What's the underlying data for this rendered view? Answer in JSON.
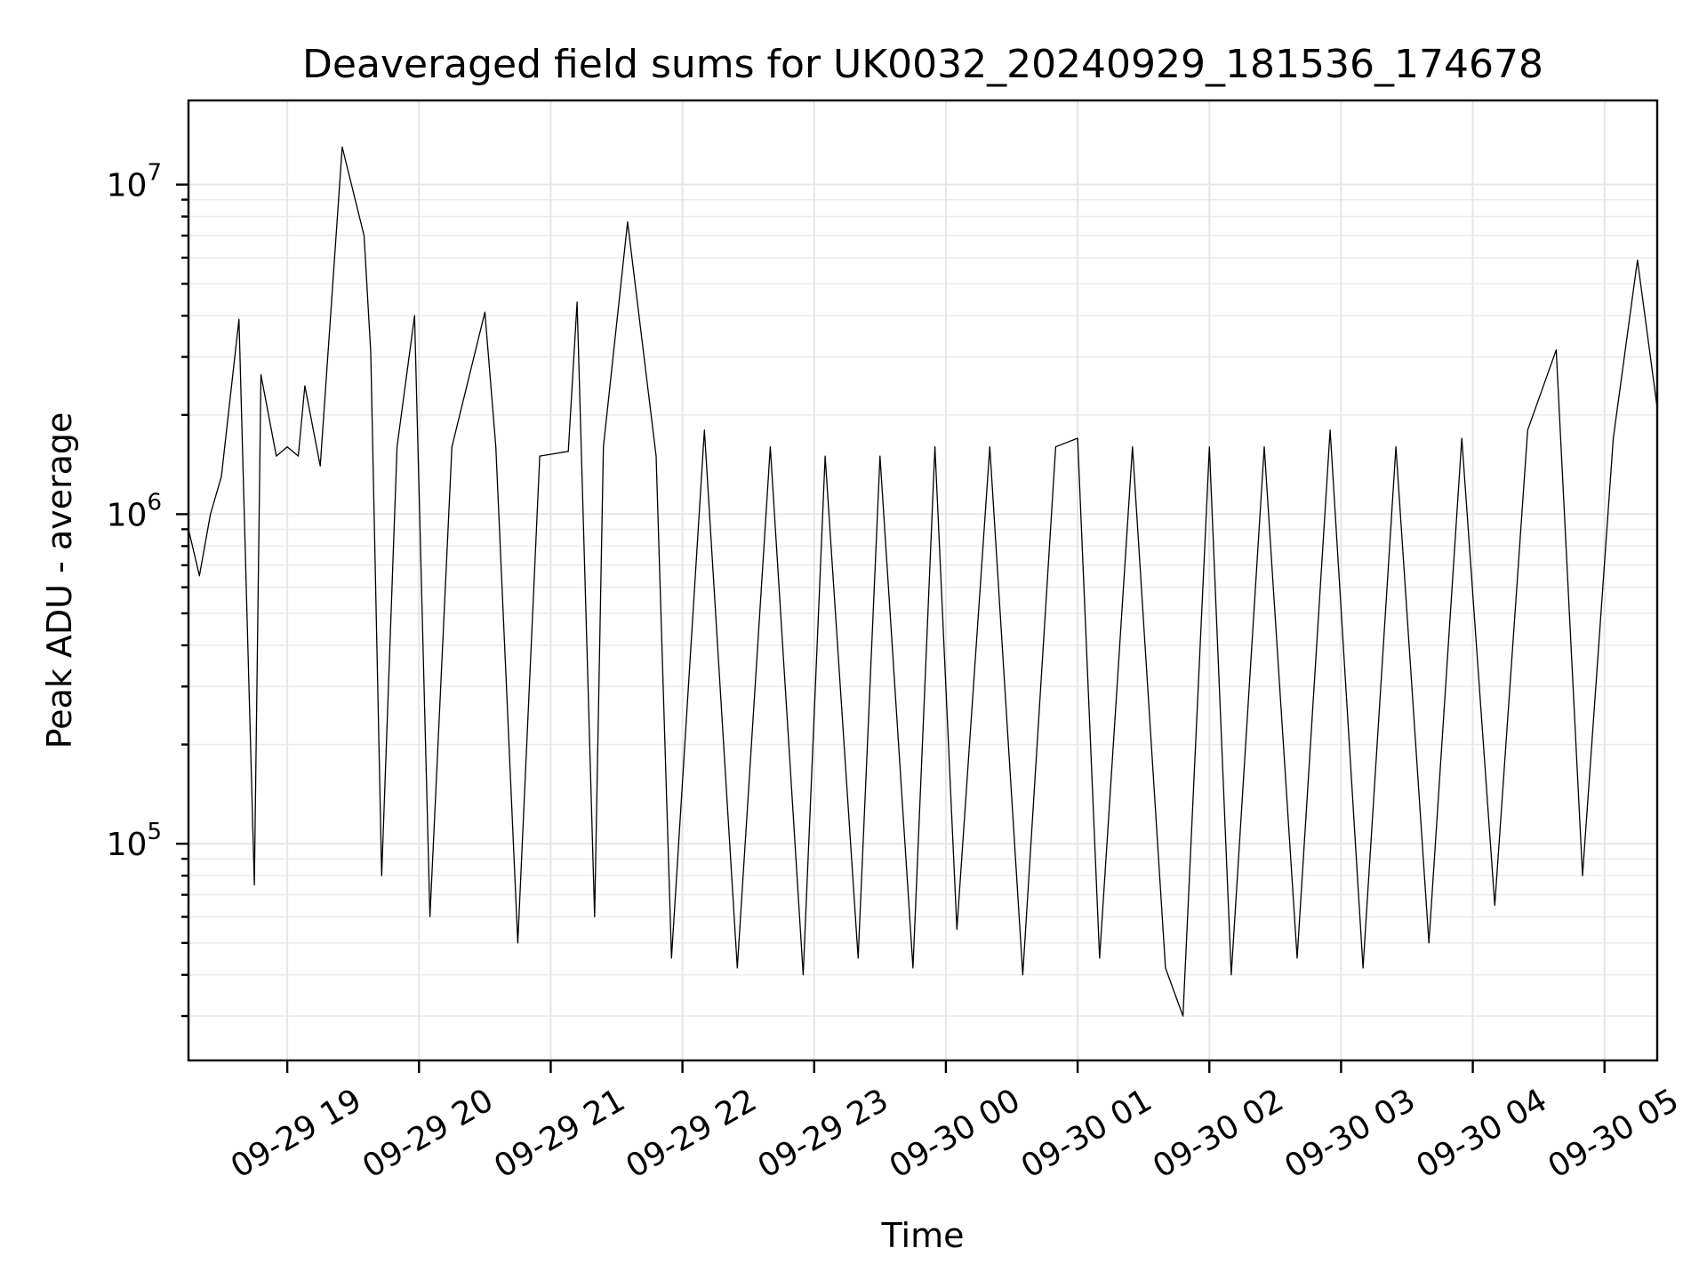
{
  "chart_data": {
    "type": "line",
    "title": "Deaveraged field sums for UK0032_20240929_181536_174678",
    "xlabel": "Time",
    "ylabel": "Peak ADU - average",
    "yscale": "log",
    "ylim": [
      22000,
      18000000
    ],
    "xlim": [
      "2024-09-29 18:15",
      "2024-09-30 05:24"
    ],
    "x_ticks": [
      {
        "value": "2024-09-29 19:00",
        "label": "09-29 19"
      },
      {
        "value": "2024-09-29 20:00",
        "label": "09-29 20"
      },
      {
        "value": "2024-09-29 21:00",
        "label": "09-29 21"
      },
      {
        "value": "2024-09-29 22:00",
        "label": "09-29 22"
      },
      {
        "value": "2024-09-29 23:00",
        "label": "09-29 23"
      },
      {
        "value": "2024-09-30 00:00",
        "label": "09-30 00"
      },
      {
        "value": "2024-09-30 01:00",
        "label": "09-30 01"
      },
      {
        "value": "2024-09-30 02:00",
        "label": "09-30 02"
      },
      {
        "value": "2024-09-30 03:00",
        "label": "09-30 03"
      },
      {
        "value": "2024-09-30 04:00",
        "label": "09-30 04"
      },
      {
        "value": "2024-09-30 05:00",
        "label": "09-30 05"
      }
    ],
    "y_ticks": [
      {
        "value": 100000,
        "base": "10",
        "exp": "5"
      },
      {
        "value": 1000000,
        "base": "10",
        "exp": "6"
      },
      {
        "value": 10000000,
        "base": "10",
        "exp": "7"
      }
    ],
    "grid": true,
    "series_color": "#000000",
    "series": [
      {
        "x": [
          "2024-09-29 18:15",
          "2024-09-29 18:20",
          "2024-09-29 18:25",
          "2024-09-29 18:30",
          "2024-09-29 18:38",
          "2024-09-29 18:45",
          "2024-09-29 18:48",
          "2024-09-29 18:55",
          "2024-09-29 19:00",
          "2024-09-29 19:05",
          "2024-09-29 19:08",
          "2024-09-29 19:15",
          "2024-09-29 19:25",
          "2024-09-29 19:35",
          "2024-09-29 19:38",
          "2024-09-29 19:43",
          "2024-09-29 19:50",
          "2024-09-29 19:58",
          "2024-09-29 20:05",
          "2024-09-29 20:15",
          "2024-09-29 20:30",
          "2024-09-29 20:35",
          "2024-09-29 20:45",
          "2024-09-29 20:55",
          "2024-09-29 21:08",
          "2024-09-29 21:12",
          "2024-09-29 21:20",
          "2024-09-29 21:24",
          "2024-09-29 21:35",
          "2024-09-29 21:48",
          "2024-09-29 21:55",
          "2024-09-29 22:10",
          "2024-09-29 22:25",
          "2024-09-29 22:40",
          "2024-09-29 22:55",
          "2024-09-29 23:05",
          "2024-09-29 23:20",
          "2024-09-29 23:30",
          "2024-09-29 23:45",
          "2024-09-29 23:55",
          "2024-09-30 00:05",
          "2024-09-30 00:20",
          "2024-09-30 00:35",
          "2024-09-30 00:50",
          "2024-09-30 01:00",
          "2024-09-30 01:10",
          "2024-09-30 01:25",
          "2024-09-30 01:40",
          "2024-09-30 01:48",
          "2024-09-30 02:00",
          "2024-09-30 02:10",
          "2024-09-30 02:25",
          "2024-09-30 02:40",
          "2024-09-30 02:55",
          "2024-09-30 03:10",
          "2024-09-30 03:25",
          "2024-09-30 03:40",
          "2024-09-30 03:55",
          "2024-09-30 04:10",
          "2024-09-30 04:25",
          "2024-09-30 04:38",
          "2024-09-30 04:50",
          "2024-09-30 05:04",
          "2024-09-30 05:15",
          "2024-09-30 05:24"
        ],
        "y": [
          900000,
          650000,
          1000000,
          1300000,
          3900000,
          75000,
          2650000,
          1500000,
          1600000,
          1500000,
          2450000,
          1400000,
          13000000,
          7000000,
          3100000,
          80000,
          1600000,
          4000000,
          60000,
          1600000,
          4100000,
          1600000,
          50000,
          1500000,
          1550000,
          4400000,
          60000,
          1600000,
          7700000,
          1500000,
          45000,
          1800000,
          42000,
          1600000,
          40000,
          1500000,
          45000,
          1500000,
          42000,
          1600000,
          55000,
          1600000,
          40000,
          1600000,
          1700000,
          45000,
          1600000,
          42000,
          30000,
          1600000,
          40000,
          1600000,
          45000,
          1800000,
          42000,
          1600000,
          50000,
          1700000,
          65000,
          1800000,
          3150000,
          80000,
          1700000,
          5900000,
          2100000
        ]
      }
    ]
  }
}
